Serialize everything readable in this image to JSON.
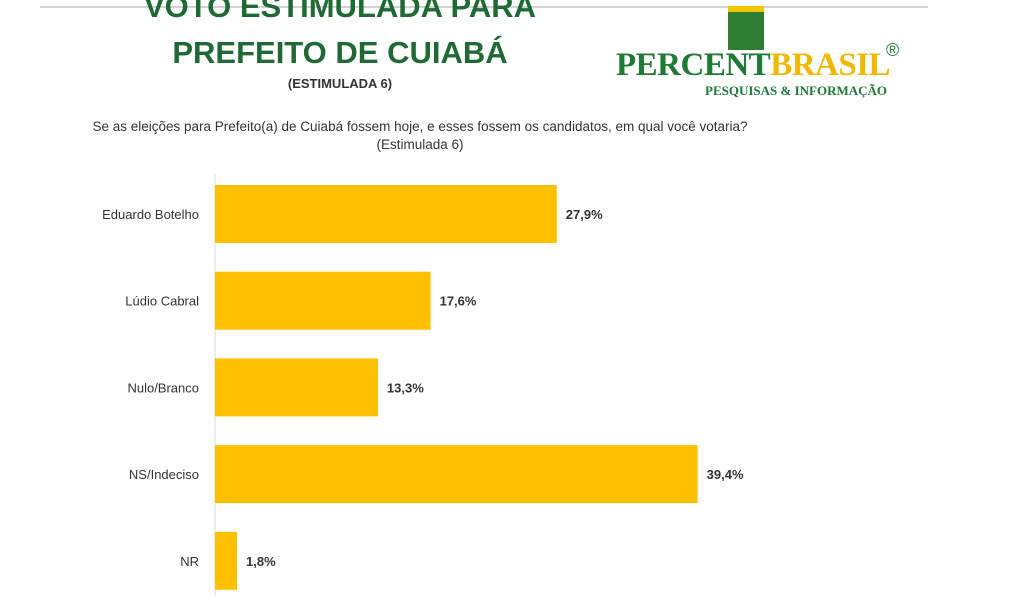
{
  "chart_data": {
    "type": "bar",
    "orientation": "horizontal",
    "title": [
      "VOTO ESTIMULADA PARA",
      "PREFEITO DE CUIABÁ"
    ],
    "subtitle": "(ESTIMULADA 6)",
    "question": "Se as eleições para Prefeito(a) de Cuiabá fossem hoje, e esses fossem os candidatos, em qual você votaria? (Estimulada 6)",
    "categories": [
      "Eduardo Botelho",
      "Lúdio Cabral",
      "Nulo/Branco",
      "NS/Indeciso",
      "NR"
    ],
    "values": [
      27.9,
      17.6,
      13.3,
      39.4,
      1.8
    ],
    "value_labels": [
      "27,9%",
      "17,6%",
      "13,3%",
      "39,4%",
      "1,8%"
    ],
    "xlim": [
      0,
      45
    ],
    "unit": "%",
    "grid": false,
    "legend": "none",
    "bar_color": "#ffc000"
  },
  "logo": {
    "word_part1": "PERCENT",
    "word_part2": "BRASIL",
    "registered": "®",
    "tagline": "PESQUISAS & INFORMAÇÃO",
    "colors": {
      "green": "#1e7a35",
      "yellow": "#f0b800"
    }
  }
}
